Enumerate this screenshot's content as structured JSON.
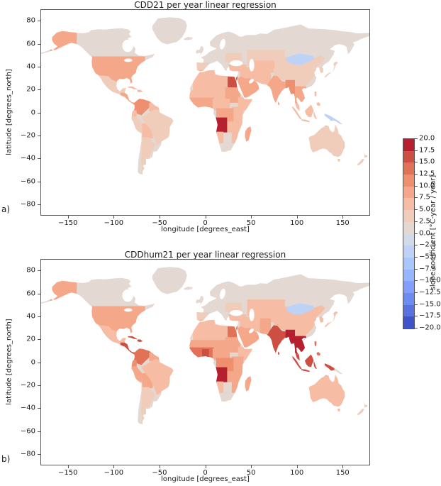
{
  "figure": {
    "background": "#ffffff",
    "panels": [
      "a)",
      "b)"
    ]
  },
  "colorbar": {
    "label": "slope coefficient [°C-year / year]",
    "ticks": [
      20.0,
      17.5,
      15.0,
      12.5,
      10.0,
      7.5,
      5.0,
      2.5,
      0.0,
      -2.5,
      -5.0,
      -7.5,
      -10.0,
      -12.5,
      -15.0,
      -17.5,
      -20.0
    ],
    "vmin": -20.0,
    "vmax": 20.0,
    "n_segments": 16,
    "colormap": "coolwarm",
    "segment_colors_low_to_high": [
      "#3f54c6",
      "#5673e0",
      "#6b8df1",
      "#819ffb",
      "#96b5ff",
      "#abc6fd",
      "#bed2f6",
      "#d1dae9",
      "#e4d8d2",
      "#f0cdbb",
      "#f6bda4",
      "#f5a889",
      "#ee8f6f",
      "#e17258",
      "#cd4f41",
      "#b61f2e"
    ]
  },
  "chart_data": [
    {
      "type": "choropleth_map",
      "panel_label": "a)",
      "title": "CDD21 per year linear regression",
      "xlabel": "longitude [degrees_east]",
      "ylabel": "latitude [degrees_north]",
      "xlim": [
        -180,
        180
      ],
      "ylim": [
        -90,
        90
      ],
      "xticks": [
        -150,
        -100,
        -50,
        0,
        50,
        100,
        150
      ],
      "yticks": [
        80,
        60,
        40,
        20,
        0,
        -20,
        -40,
        -60,
        -80
      ],
      "units": "°C-year / year",
      "base_land_value": 1,
      "region_values": {
        "canada": 1,
        "alaska": 8,
        "usa": 8,
        "mexico": 4,
        "central_america": 9,
        "cuba": 6,
        "hispaniola": 6,
        "colombia_venezuela": 11,
        "guyanas": 7,
        "ecuador": 6,
        "peru": 3,
        "bolivia": 6,
        "brazil": 4,
        "chile": 2,
        "argentina": 3,
        "greenland": 1,
        "iceland": 1,
        "europe_west": 2,
        "iberia": 4,
        "europe_east": 2,
        "ukraine": 3,
        "scandinavia": 1,
        "russia": 1,
        "kazakhstan": 4,
        "central_asia": 6,
        "middle_east": 6,
        "turkey": 5,
        "saudi_arabia": 9,
        "north_africa": 5,
        "morocco": 6,
        "egypt": 16,
        "sahel": 7,
        "sudan": 9,
        "west_africa": 8,
        "ghana_benin": 8,
        "cameroon_car": 7,
        "horn_of_africa": 6,
        "east_africa": 7,
        "drc": 8,
        "zambia_mozambique": 7,
        "angola": 19,
        "namibia": 6,
        "botswana": 1,
        "south_africa": 2,
        "madagascar": 8,
        "pakistan_afghanistan": 6,
        "india": 8,
        "bangladesh_myanmar": 11,
        "china": 3,
        "mongolia": -3,
        "southeast_asia": 9,
        "korea": 4,
        "japan": 4,
        "malaysia_indonesia": 7,
        "philippines": 7,
        "new_guinea_west": -3,
        "new_guinea_east": -3,
        "australia": 4,
        "new_zealand": 3
      }
    },
    {
      "type": "choropleth_map",
      "panel_label": "b)",
      "title": "CDDhum21 per year linear regression",
      "xlabel": "longitude [degrees_east]",
      "ylabel": "latitude [degrees_north]",
      "xlim": [
        -180,
        180
      ],
      "ylim": [
        -90,
        90
      ],
      "xticks": [
        -150,
        -100,
        -50,
        0,
        50,
        100,
        150
      ],
      "yticks": [
        80,
        60,
        40,
        20,
        0,
        -20,
        -40,
        -60,
        -80
      ],
      "units": "°C-year / year",
      "base_land_value": 1,
      "region_values": {
        "canada": 1,
        "alaska": 8,
        "usa": 8,
        "mexico": 7,
        "central_america": 16,
        "cuba": 16,
        "hispaniola": 16,
        "colombia_venezuela": 13,
        "guyanas": 9,
        "ecuador": 10,
        "peru": 9,
        "bolivia": 9,
        "brazil": 6,
        "chile": 2,
        "argentina": 4,
        "greenland": 1,
        "iceland": 1,
        "europe_west": 2,
        "iberia": 4,
        "europe_east": 2,
        "ukraine": 4,
        "scandinavia": 1,
        "russia": 1,
        "kazakhstan": 6,
        "central_asia": 6,
        "middle_east": 7,
        "turkey": 6,
        "saudi_arabia": 9,
        "north_africa": 6,
        "morocco": 7,
        "egypt": 13,
        "sahel": 8,
        "sudan": 9,
        "west_africa": 13,
        "ghana_benin": 16,
        "cameroon_car": 9,
        "horn_of_africa": 7,
        "east_africa": 9,
        "drc": 10,
        "zambia_mozambique": 9,
        "angola": 18,
        "namibia": 7,
        "botswana": 1,
        "south_africa": 2,
        "madagascar": 9,
        "pakistan_afghanistan": 9,
        "india": 16,
        "bangladesh_myanmar": 18,
        "china": 6,
        "mongolia": -3,
        "southeast_asia": 19,
        "korea": 6,
        "japan": 6,
        "malaysia_indonesia": 16,
        "philippines": 14,
        "new_guinea_west": 16,
        "new_guinea_east": 1,
        "australia": 5,
        "new_zealand": 3
      }
    }
  ]
}
